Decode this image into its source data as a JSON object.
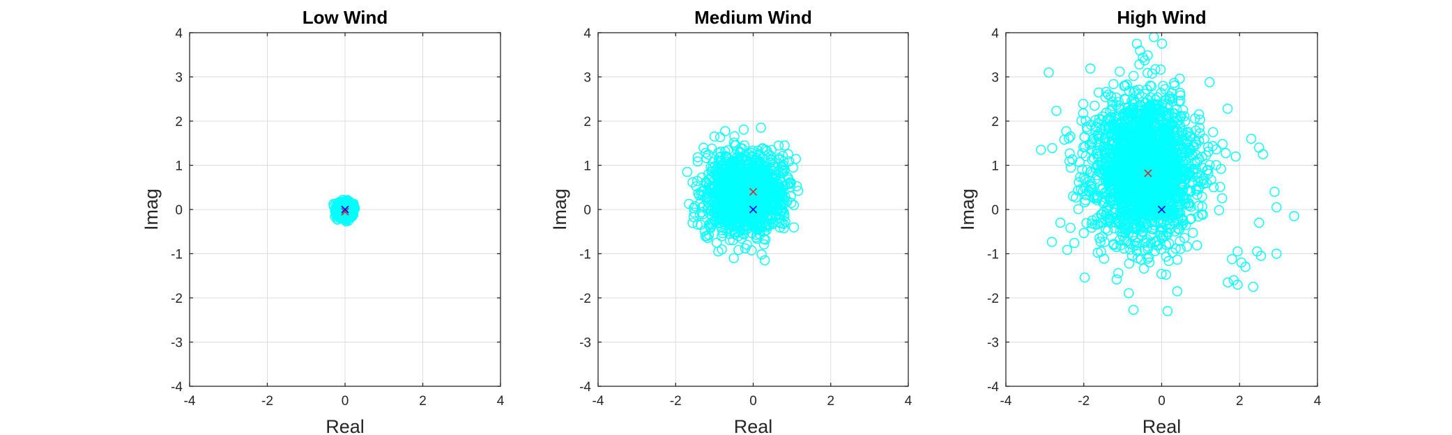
{
  "figure": {
    "background": "#ffffff",
    "point_color": "#00ffff",
    "marker_colors": {
      "red": "#d62728",
      "blue": "#0000ff"
    }
  },
  "chart_data": [
    {
      "type": "scatter",
      "title": "Low Wind",
      "xlabel": "Real",
      "ylabel": "Imag",
      "xlim": [
        -4,
        4
      ],
      "ylim": [
        -4,
        4
      ],
      "xticks": [
        -4,
        -2,
        0,
        2,
        4
      ],
      "yticks": [
        -4,
        -3,
        -2,
        -1,
        0,
        1,
        2,
        3,
        4
      ],
      "grid": true,
      "series": [
        {
          "marker": "circle",
          "color": "#00ffff",
          "spread": {
            "center": [
              0.0,
              0.0
            ],
            "sigma": [
              0.1,
              0.08
            ],
            "count": 900,
            "extent": [
              [
                -0.3,
                0.4
              ],
              [
                -0.35,
                0.3
              ]
            ]
          }
        },
        {
          "marker": "x",
          "color": "#d62728",
          "points": [
            [
              0.0,
              -0.05
            ]
          ]
        },
        {
          "marker": "x",
          "color": "#0000ff",
          "points": [
            [
              0.0,
              0.0
            ]
          ]
        }
      ]
    },
    {
      "type": "scatter",
      "title": "Medium Wind",
      "xlabel": "Real",
      "ylabel": "Imag",
      "xlim": [
        -4,
        4
      ],
      "ylim": [
        -4,
        4
      ],
      "xticks": [
        -4,
        -2,
        0,
        2,
        4
      ],
      "yticks": [
        -4,
        -3,
        -2,
        -1,
        0,
        1,
        2,
        3,
        4
      ],
      "grid": true,
      "series": [
        {
          "marker": "circle",
          "color": "#00ffff",
          "spread": {
            "center": [
              -0.2,
              0.35
            ],
            "sigma": [
              0.5,
              0.45
            ],
            "count": 1400,
            "extent": [
              [
                -1.8,
                1.2
              ],
              [
                -1.2,
                1.9
              ]
            ]
          },
          "outliers": [
            [
              -1.7,
              0.85
            ],
            [
              -1.2,
              -0.6
            ],
            [
              1.05,
              0.1
            ],
            [
              0.9,
              1.25
            ],
            [
              -0.5,
              -1.1
            ],
            [
              0.3,
              -1.15
            ],
            [
              -1.0,
              1.65
            ],
            [
              0.2,
              1.85
            ],
            [
              -0.9,
              -0.95
            ]
          ]
        },
        {
          "marker": "x",
          "color": "#d62728",
          "points": [
            [
              0.0,
              0.4
            ]
          ]
        },
        {
          "marker": "x",
          "color": "#0000ff",
          "points": [
            [
              0.0,
              0.0
            ]
          ]
        }
      ]
    },
    {
      "type": "scatter",
      "title": "High Wind",
      "xlabel": "Real",
      "ylabel": "Imag",
      "xlim": [
        -4,
        4
      ],
      "ylim": [
        -4,
        4
      ],
      "xticks": [
        -4,
        -2,
        0,
        2,
        4
      ],
      "yticks": [
        -4,
        -3,
        -2,
        -1,
        0,
        1,
        2,
        3,
        4
      ],
      "grid": true,
      "series": [
        {
          "marker": "circle",
          "color": "#00ffff",
          "spread": {
            "center": [
              -0.45,
              0.9
            ],
            "sigma": [
              0.7,
              0.85
            ],
            "count": 2000,
            "extent": [
              [
                -3.0,
                2.0
              ],
              [
                -2.4,
                4.0
              ]
            ]
          },
          "outliers": [
            [
              -2.9,
              3.1
            ],
            [
              -3.1,
              1.35
            ],
            [
              -2.6,
              -0.3
            ],
            [
              2.3,
              1.6
            ],
            [
              2.5,
              1.4
            ],
            [
              2.6,
              1.25
            ],
            [
              2.9,
              0.4
            ],
            [
              3.4,
              -0.15
            ],
            [
              2.95,
              0.05
            ],
            [
              2.5,
              -0.3
            ],
            [
              2.45,
              -0.95
            ],
            [
              2.95,
              -1.0
            ],
            [
              2.05,
              -1.2
            ],
            [
              2.15,
              -1.3
            ],
            [
              1.85,
              -1.6
            ],
            [
              1.95,
              -1.7
            ],
            [
              2.35,
              -1.75
            ],
            [
              1.7,
              -1.65
            ],
            [
              0.15,
              -2.3
            ],
            [
              0.4,
              -1.85
            ],
            [
              -0.2,
              3.9
            ],
            [
              1.9,
              1.2
            ],
            [
              1.95,
              -0.95
            ],
            [
              2.55,
              -1.05
            ]
          ]
        },
        {
          "marker": "x",
          "color": "#d62728",
          "points": [
            [
              -0.35,
              0.82
            ]
          ]
        },
        {
          "marker": "x",
          "color": "#0000ff",
          "points": [
            [
              0.0,
              0.0
            ]
          ]
        }
      ]
    }
  ]
}
